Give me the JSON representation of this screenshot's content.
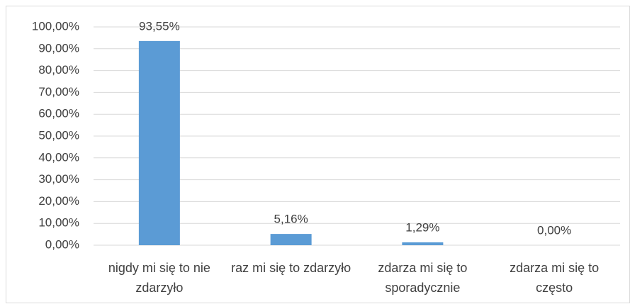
{
  "chart_data": {
    "type": "bar",
    "categories": [
      "nigdy mi się to nie zdarzyło",
      "raz mi się to zdarzyło",
      "zdarza mi się to sporadycznie",
      "zdarza mi się to często"
    ],
    "values": [
      93.55,
      5.16,
      1.29,
      0
    ],
    "value_labels": [
      "93,55%",
      "5,16%",
      "1,29%",
      "0,00%"
    ],
    "color": "#5b9bd5",
    "ylim": [
      0,
      100
    ],
    "yticks": [
      {
        "value": 0,
        "label": "0,00%"
      },
      {
        "value": 10,
        "label": "10,00%"
      },
      {
        "value": 20,
        "label": "20,00%"
      },
      {
        "value": 30,
        "label": "30,00%"
      },
      {
        "value": 40,
        "label": "40,00%"
      },
      {
        "value": 50,
        "label": "50,00%"
      },
      {
        "value": 60,
        "label": "60,00%"
      },
      {
        "value": 70,
        "label": "70,00%"
      },
      {
        "value": 80,
        "label": "80,00%"
      },
      {
        "value": 90,
        "label": "90,00%"
      },
      {
        "value": 100,
        "label": "100,00%"
      }
    ],
    "grid": true
  }
}
